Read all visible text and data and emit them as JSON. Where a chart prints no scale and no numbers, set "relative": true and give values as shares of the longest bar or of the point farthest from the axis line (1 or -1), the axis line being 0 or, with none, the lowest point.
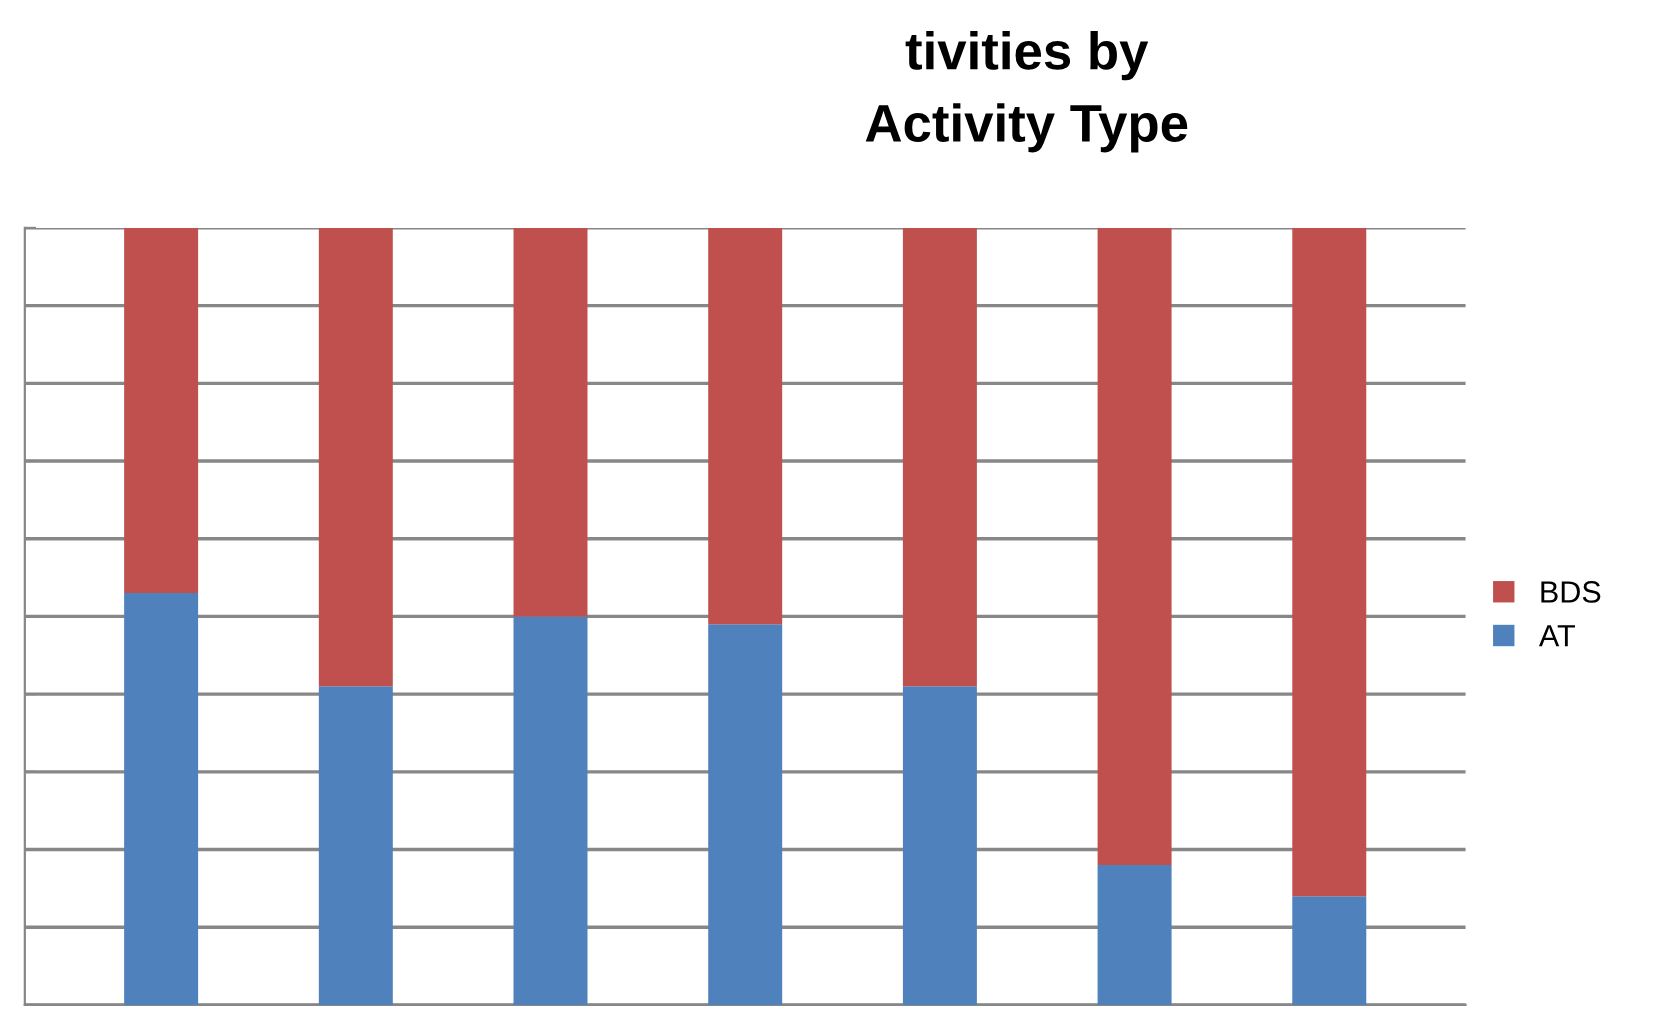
{
  "chart_data": {
    "type": "bar",
    "title": "tivities by\nActivity Type",
    "relative": true,
    "stacked": true,
    "grid": "y",
    "legend": "right",
    "categories": [
      null,
      null,
      null,
      null,
      null,
      null,
      null
    ],
    "series": [
      {
        "name": "AT",
        "color": "#4f81bd",
        "values": [
          0.53,
          0.41,
          0.5,
          0.49,
          0.41,
          0.18,
          0.14
        ]
      },
      {
        "name": "BDS",
        "color": "#c0504d",
        "values": [
          0.47,
          0.59,
          0.5,
          0.51,
          0.59,
          0.82,
          0.86
        ]
      }
    ]
  }
}
